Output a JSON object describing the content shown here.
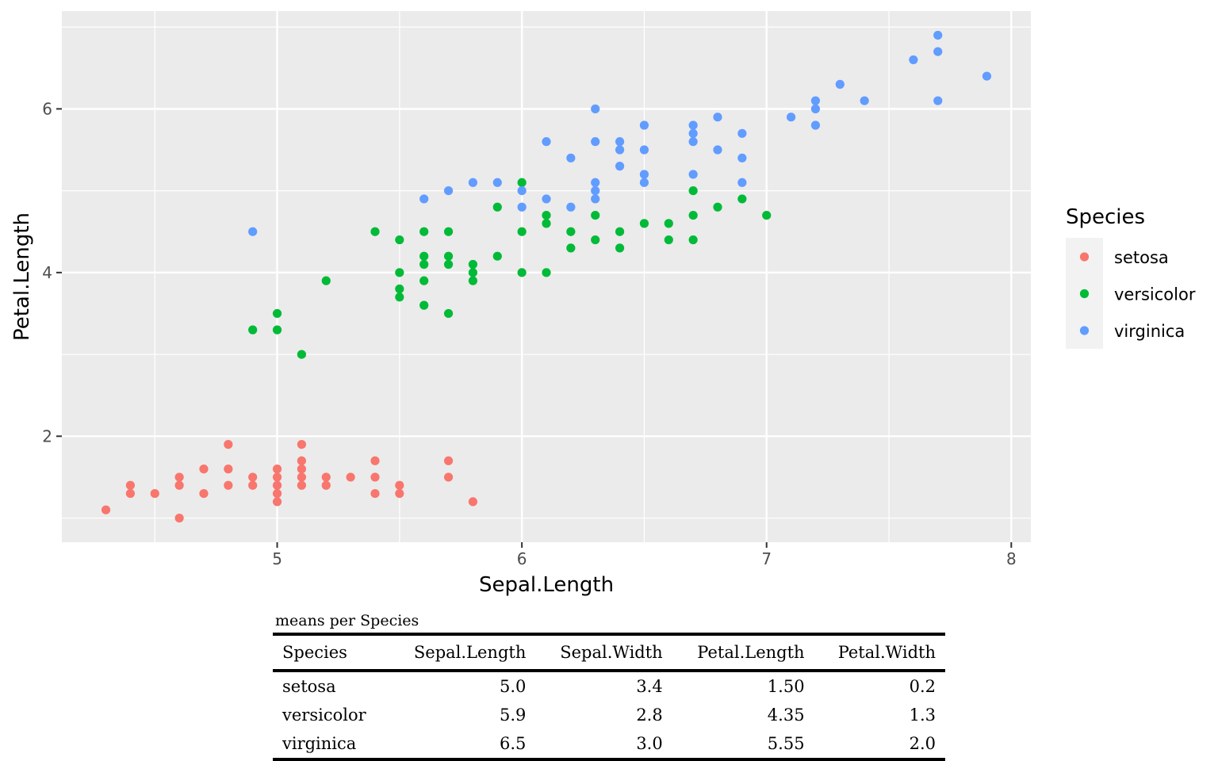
{
  "chart_data": {
    "type": "scatter",
    "xlabel": "Sepal.Length",
    "ylabel": "Petal.Length",
    "xlim": [
      4.12,
      8.08
    ],
    "ylim": [
      0.705,
      7.195
    ],
    "x_ticks": [
      5,
      6,
      7,
      8
    ],
    "y_ticks": [
      2,
      4,
      6
    ],
    "x_tick_labels": [
      "5",
      "6",
      "7",
      "8"
    ],
    "y_tick_labels": [
      "2",
      "4",
      "6"
    ],
    "grid": true,
    "legend": {
      "title": "Species",
      "position": "right"
    },
    "series": [
      {
        "name": "setosa",
        "color": "#F8766D",
        "points": [
          [
            4.3,
            1.1
          ],
          [
            4.4,
            1.3
          ],
          [
            4.4,
            1.4
          ],
          [
            4.5,
            1.3
          ],
          [
            4.6,
            1.0
          ],
          [
            4.6,
            1.4
          ],
          [
            4.6,
            1.5
          ],
          [
            4.7,
            1.3
          ],
          [
            4.7,
            1.6
          ],
          [
            4.8,
            1.4
          ],
          [
            4.8,
            1.6
          ],
          [
            4.8,
            1.9
          ],
          [
            4.9,
            1.4
          ],
          [
            4.9,
            1.5
          ],
          [
            5.0,
            1.2
          ],
          [
            5.0,
            1.3
          ],
          [
            5.0,
            1.4
          ],
          [
            5.0,
            1.5
          ],
          [
            5.0,
            1.6
          ],
          [
            5.1,
            1.4
          ],
          [
            5.1,
            1.5
          ],
          [
            5.1,
            1.6
          ],
          [
            5.1,
            1.7
          ],
          [
            5.1,
            1.9
          ],
          [
            5.2,
            1.4
          ],
          [
            5.2,
            1.5
          ],
          [
            5.3,
            1.5
          ],
          [
            5.4,
            1.3
          ],
          [
            5.4,
            1.5
          ],
          [
            5.4,
            1.7
          ],
          [
            5.5,
            1.3
          ],
          [
            5.5,
            1.4
          ],
          [
            5.7,
            1.5
          ],
          [
            5.7,
            1.7
          ],
          [
            5.8,
            1.2
          ]
        ]
      },
      {
        "name": "versicolor",
        "color": "#00BA38",
        "points": [
          [
            4.9,
            3.3
          ],
          [
            5.0,
            3.3
          ],
          [
            5.0,
            3.5
          ],
          [
            5.1,
            3.0
          ],
          [
            5.2,
            3.9
          ],
          [
            5.4,
            4.5
          ],
          [
            5.5,
            3.7
          ],
          [
            5.5,
            3.8
          ],
          [
            5.5,
            4.0
          ],
          [
            5.5,
            4.4
          ],
          [
            5.6,
            3.6
          ],
          [
            5.6,
            3.9
          ],
          [
            5.6,
            4.1
          ],
          [
            5.6,
            4.2
          ],
          [
            5.6,
            4.5
          ],
          [
            5.7,
            3.5
          ],
          [
            5.7,
            4.1
          ],
          [
            5.7,
            4.2
          ],
          [
            5.7,
            4.5
          ],
          [
            5.8,
            3.9
          ],
          [
            5.8,
            4.0
          ],
          [
            5.8,
            4.1
          ],
          [
            5.9,
            4.2
          ],
          [
            5.9,
            4.8
          ],
          [
            6.0,
            4.0
          ],
          [
            6.0,
            4.5
          ],
          [
            6.0,
            5.1
          ],
          [
            6.1,
            4.0
          ],
          [
            6.1,
            4.6
          ],
          [
            6.1,
            4.7
          ],
          [
            6.2,
            4.3
          ],
          [
            6.2,
            4.5
          ],
          [
            6.3,
            4.4
          ],
          [
            6.3,
            4.7
          ],
          [
            6.4,
            4.3
          ],
          [
            6.4,
            4.5
          ],
          [
            6.5,
            4.6
          ],
          [
            6.6,
            4.4
          ],
          [
            6.6,
            4.6
          ],
          [
            6.7,
            4.4
          ],
          [
            6.7,
            4.7
          ],
          [
            6.7,
            5.0
          ],
          [
            6.8,
            4.8
          ],
          [
            6.9,
            4.9
          ],
          [
            7.0,
            4.7
          ]
        ]
      },
      {
        "name": "virginica",
        "color": "#619CFF",
        "points": [
          [
            4.9,
            4.5
          ],
          [
            5.6,
            4.9
          ],
          [
            5.7,
            5.0
          ],
          [
            5.8,
            5.1
          ],
          [
            5.9,
            5.1
          ],
          [
            6.0,
            4.8
          ],
          [
            6.0,
            5.0
          ],
          [
            6.1,
            4.9
          ],
          [
            6.1,
            5.6
          ],
          [
            6.2,
            4.8
          ],
          [
            6.2,
            5.4
          ],
          [
            6.3,
            4.9
          ],
          [
            6.3,
            5.0
          ],
          [
            6.3,
            5.1
          ],
          [
            6.3,
            5.6
          ],
          [
            6.3,
            6.0
          ],
          [
            6.4,
            5.3
          ],
          [
            6.4,
            5.5
          ],
          [
            6.4,
            5.6
          ],
          [
            6.5,
            5.1
          ],
          [
            6.5,
            5.2
          ],
          [
            6.5,
            5.5
          ],
          [
            6.5,
            5.8
          ],
          [
            6.7,
            5.2
          ],
          [
            6.7,
            5.6
          ],
          [
            6.7,
            5.7
          ],
          [
            6.7,
            5.8
          ],
          [
            6.8,
            5.5
          ],
          [
            6.8,
            5.9
          ],
          [
            6.9,
            5.1
          ],
          [
            6.9,
            5.4
          ],
          [
            6.9,
            5.7
          ],
          [
            7.1,
            5.9
          ],
          [
            7.2,
            5.8
          ],
          [
            7.2,
            6.0
          ],
          [
            7.2,
            6.1
          ],
          [
            7.3,
            6.3
          ],
          [
            7.4,
            6.1
          ],
          [
            7.6,
            6.6
          ],
          [
            7.7,
            6.1
          ],
          [
            7.7,
            6.7
          ],
          [
            7.7,
            6.9
          ],
          [
            7.9,
            6.4
          ]
        ]
      }
    ]
  },
  "table": {
    "caption": "means per Species",
    "columns": [
      "Species",
      "Sepal.Length",
      "Sepal.Width",
      "Petal.Length",
      "Petal.Width"
    ],
    "rows": [
      [
        "setosa",
        "5.0",
        "3.4",
        "1.50",
        "0.2"
      ],
      [
        "versicolor",
        "5.9",
        "2.8",
        "4.35",
        "1.3"
      ],
      [
        "virginica",
        "6.5",
        "3.0",
        "5.55",
        "2.0"
      ]
    ]
  },
  "colors": {
    "panel_background": "#EBEBEB",
    "grid": "#FFFFFF",
    "legend_key_background": "#F2F2F2"
  }
}
